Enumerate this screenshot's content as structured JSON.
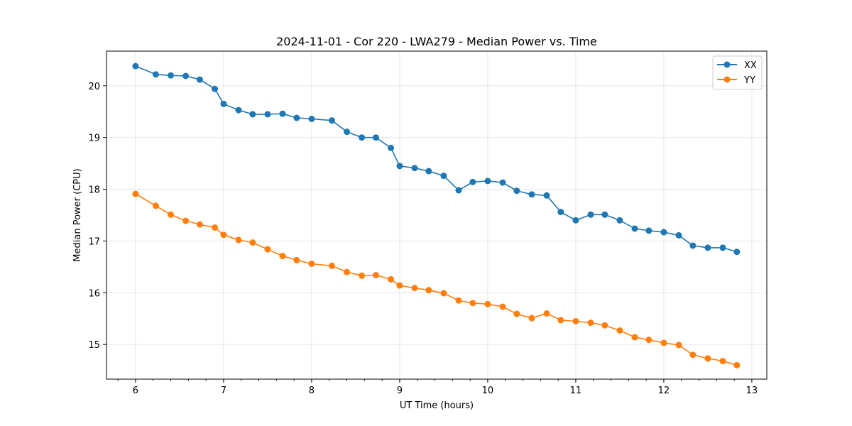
{
  "chart_data": {
    "type": "line",
    "title": "2024-11-01 - Cor 220 - LWA279 - Median Power vs. Time",
    "xlabel": "UT Time (hours)",
    "ylabel": "Median Power (CPU)",
    "xlim": [
      5.67,
      13.17
    ],
    "ylim": [
      14.33,
      20.67
    ],
    "xticks": [
      6,
      7,
      8,
      9,
      10,
      11,
      12,
      13
    ],
    "yticks": [
      15,
      16,
      17,
      18,
      19,
      20
    ],
    "minor_x_step": 0.2,
    "grid": true,
    "legend_position": "top-right",
    "x": [
      6.0,
      6.23,
      6.4,
      6.57,
      6.73,
      6.9,
      7.0,
      7.17,
      7.33,
      7.5,
      7.67,
      7.83,
      8.0,
      8.23,
      8.4,
      8.57,
      8.73,
      8.9,
      9.0,
      9.17,
      9.33,
      9.5,
      9.67,
      9.83,
      10.0,
      10.17,
      10.33,
      10.5,
      10.67,
      10.83,
      11.0,
      11.17,
      11.33,
      11.5,
      11.67,
      11.83,
      12.0,
      12.17,
      12.33,
      12.5,
      12.67,
      12.83
    ],
    "series": [
      {
        "name": "XX",
        "color": "#1f77b4",
        "values": [
          20.38,
          20.22,
          20.2,
          20.19,
          20.12,
          19.94,
          19.65,
          19.53,
          19.45,
          19.45,
          19.46,
          19.38,
          19.36,
          19.33,
          19.11,
          19.0,
          19.0,
          18.8,
          18.45,
          18.41,
          18.35,
          18.26,
          17.98,
          18.14,
          18.16,
          18.13,
          17.97,
          17.9,
          17.88,
          17.56,
          17.4,
          17.51,
          17.51,
          17.4,
          17.24,
          17.2,
          17.17,
          17.11,
          16.91,
          16.87,
          16.87,
          16.79
        ]
      },
      {
        "name": "YY",
        "color": "#ff7f0e",
        "values": [
          17.91,
          17.68,
          17.51,
          17.39,
          17.32,
          17.26,
          17.12,
          17.02,
          16.97,
          16.84,
          16.71,
          16.63,
          16.56,
          16.52,
          16.4,
          16.33,
          16.34,
          16.26,
          16.14,
          16.09,
          16.05,
          15.99,
          15.85,
          15.8,
          15.78,
          15.73,
          15.59,
          15.51,
          15.6,
          15.47,
          15.45,
          15.42,
          15.37,
          15.27,
          15.14,
          15.09,
          15.03,
          14.99,
          14.8,
          14.73,
          14.68,
          14.6
        ]
      }
    ]
  }
}
